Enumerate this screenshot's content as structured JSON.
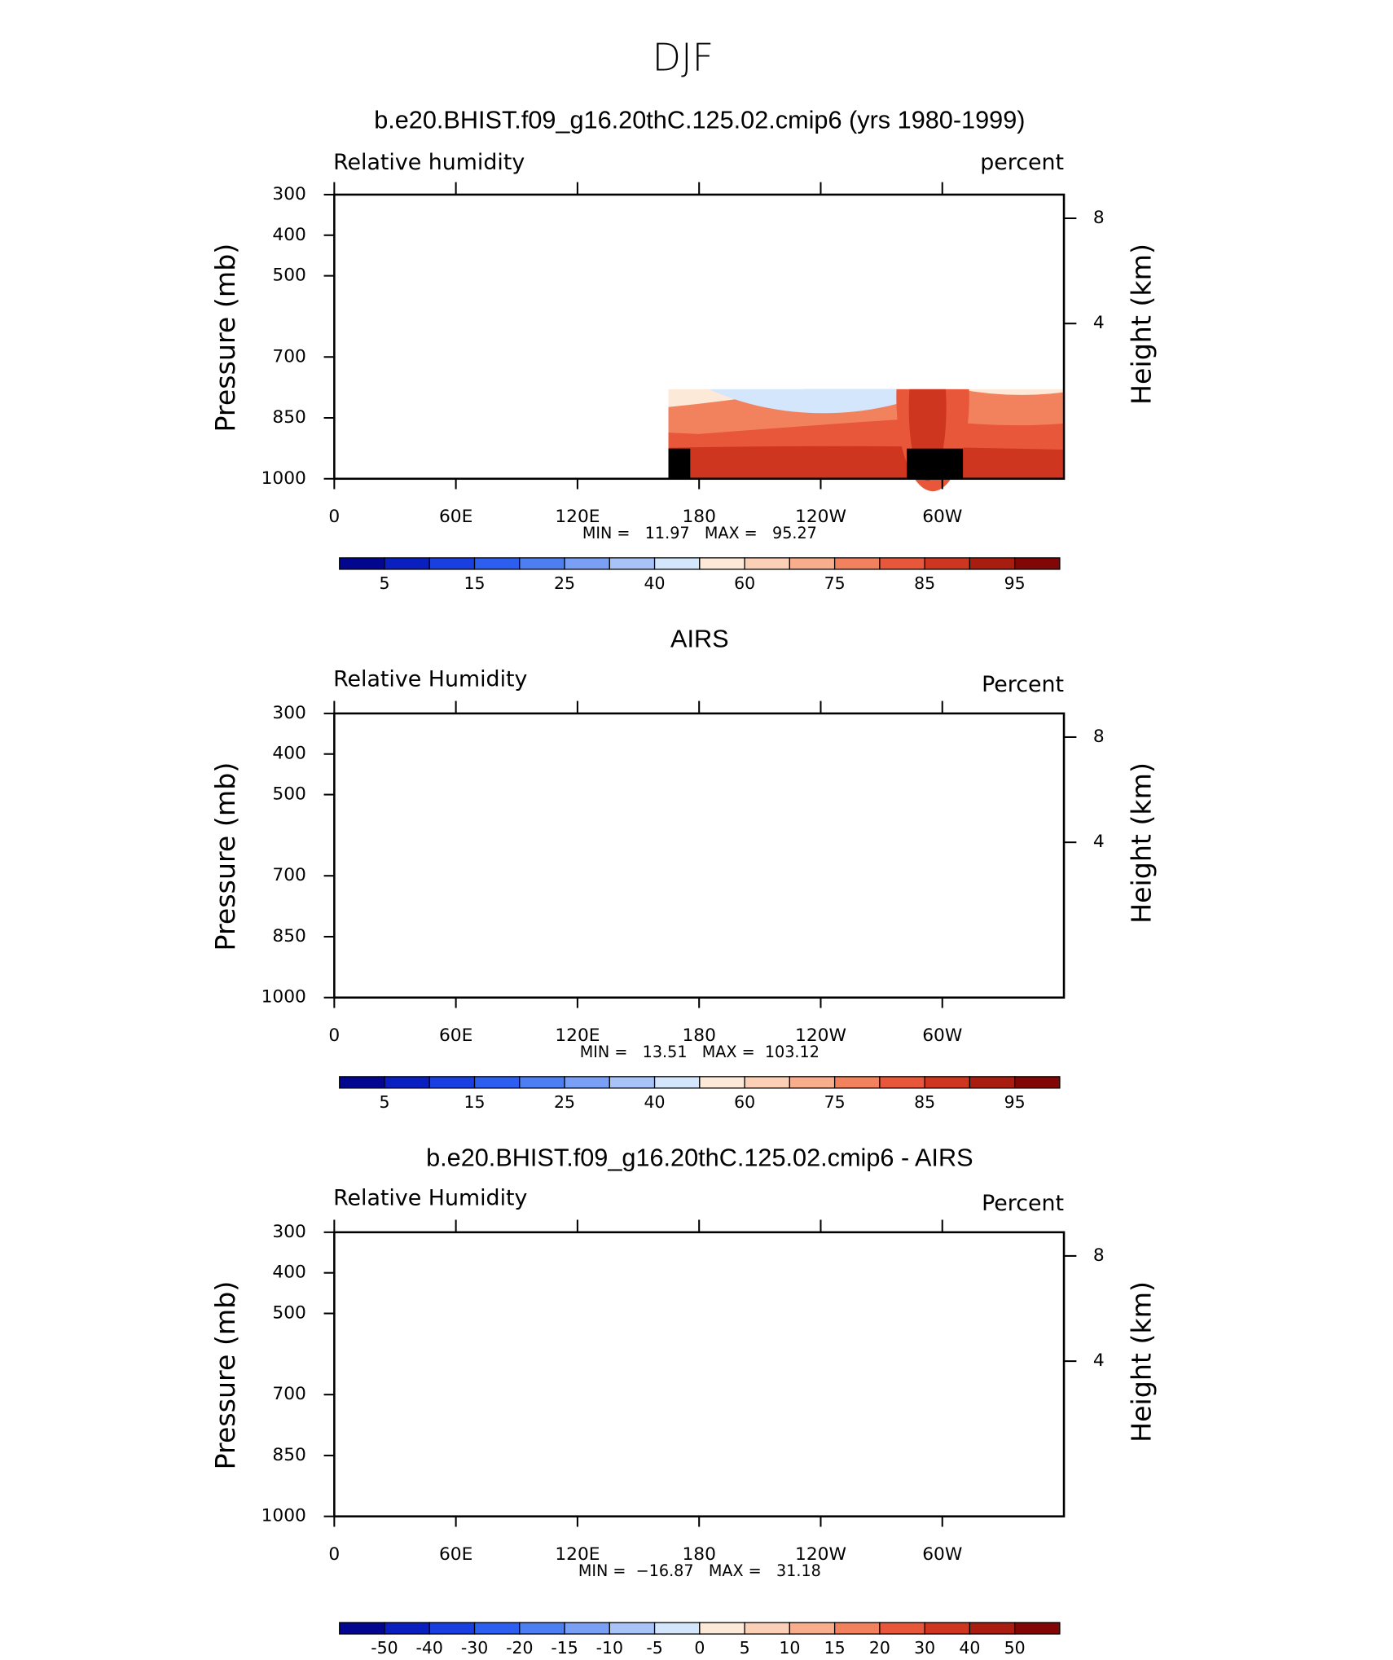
{
  "title": "DJF",
  "chart_data": [
    {
      "type": "contour",
      "title": "b.e20.BHIST.f09_g16.20thC.125.02.cmip6 (yrs 1980-1999)",
      "left_label": "Relative humidity",
      "right_label": "percent",
      "ylabel": "Pressure (mb)",
      "y2label": "Height (km)",
      "xlim": [
        0,
        360
      ],
      "xticks": [
        0,
        {
          "value": 60,
          "label": "60E"
        },
        {
          "value": 120,
          "label": "120E"
        },
        180,
        {
          "value": 240,
          "label": "120W"
        },
        {
          "value": 300,
          "label": "60W"
        }
      ],
      "ylim": [
        1000,
        300
      ],
      "yticks": [
        300,
        400,
        500,
        700,
        850,
        1000
      ],
      "y2lim": [
        -1.9,
        8.9
      ],
      "y2ticks": [
        8,
        4
      ],
      "stats": "MIN =   11.97   MAX =   95.27",
      "colorbar": {
        "colors": [
          "#03078f",
          "#0a1fbf",
          "#1a3fe0",
          "#2c5ff0",
          "#4d7ff2",
          "#7aa0f5",
          "#a8c3f7",
          "#d4e6fb",
          "#fde9d8",
          "#fcd0b6",
          "#f8ad8c",
          "#f2825e",
          "#e8573a",
          "#cf3620",
          "#a81d10",
          "#820606"
        ],
        "ticks": [
          5,
          15,
          25,
          40,
          60,
          75,
          85,
          95
        ]
      }
    },
    {
      "type": "contour",
      "title": "AIRS",
      "left_label": "Relative Humidity",
      "right_label": "Percent",
      "ylabel": "Pressure (mb)",
      "y2label": "Height (km)",
      "xlim": [
        0,
        360
      ],
      "xticks": [
        0,
        {
          "value": 60,
          "label": "60E"
        },
        {
          "value": 120,
          "label": "120E"
        },
        180,
        {
          "value": 240,
          "label": "120W"
        },
        {
          "value": 300,
          "label": "60W"
        }
      ],
      "ylim": [
        1000,
        300
      ],
      "yticks": [
        300,
        400,
        500,
        700,
        850,
        1000
      ],
      "y2lim": [
        -1.9,
        8.9
      ],
      "y2ticks": [
        8,
        4
      ],
      "stats": "MIN =   13.51   MAX =  103.12",
      "colorbar": {
        "colors": [
          "#03078f",
          "#0a1fbf",
          "#1a3fe0",
          "#2c5ff0",
          "#4d7ff2",
          "#7aa0f5",
          "#a8c3f7",
          "#d4e6fb",
          "#fde9d8",
          "#fcd0b6",
          "#f8ad8c",
          "#f2825e",
          "#e8573a",
          "#cf3620",
          "#a81d10",
          "#820606"
        ],
        "ticks": [
          5,
          15,
          25,
          40,
          60,
          75,
          85,
          95
        ]
      }
    },
    {
      "type": "contour",
      "title": "b.e20.BHIST.f09_g16.20thC.125.02.cmip6 - AIRS",
      "left_label": "Relative Humidity",
      "right_label": "Percent",
      "ylabel": "Pressure (mb)",
      "y2label": "Height (km)",
      "xlim": [
        0,
        360
      ],
      "xticks": [
        0,
        {
          "value": 60,
          "label": "60E"
        },
        {
          "value": 120,
          "label": "120E"
        },
        180,
        {
          "value": 240,
          "label": "120W"
        },
        {
          "value": 300,
          "label": "60W"
        }
      ],
      "ylim": [
        1000,
        300
      ],
      "yticks": [
        300,
        400,
        500,
        700,
        850,
        1000
      ],
      "y2lim": [
        -1.9,
        8.9
      ],
      "y2ticks": [
        8,
        4
      ],
      "stats": "MIN =  −16.87   MAX =   31.18",
      "colorbar": {
        "colors": [
          "#03078f",
          "#0a1fbf",
          "#1a3fe0",
          "#2c5ff0",
          "#4d7ff2",
          "#7aa0f5",
          "#a8c3f7",
          "#d4e6fb",
          "#fde9d8",
          "#fcd0b6",
          "#f8ad8c",
          "#f2825e",
          "#e8573a",
          "#cf3620",
          "#a81d10",
          "#820606"
        ],
        "ticks": [
          -50,
          -40,
          -30,
          -20,
          -15,
          -10,
          -5,
          0,
          5,
          10,
          15,
          20,
          30,
          40,
          50
        ]
      }
    }
  ]
}
